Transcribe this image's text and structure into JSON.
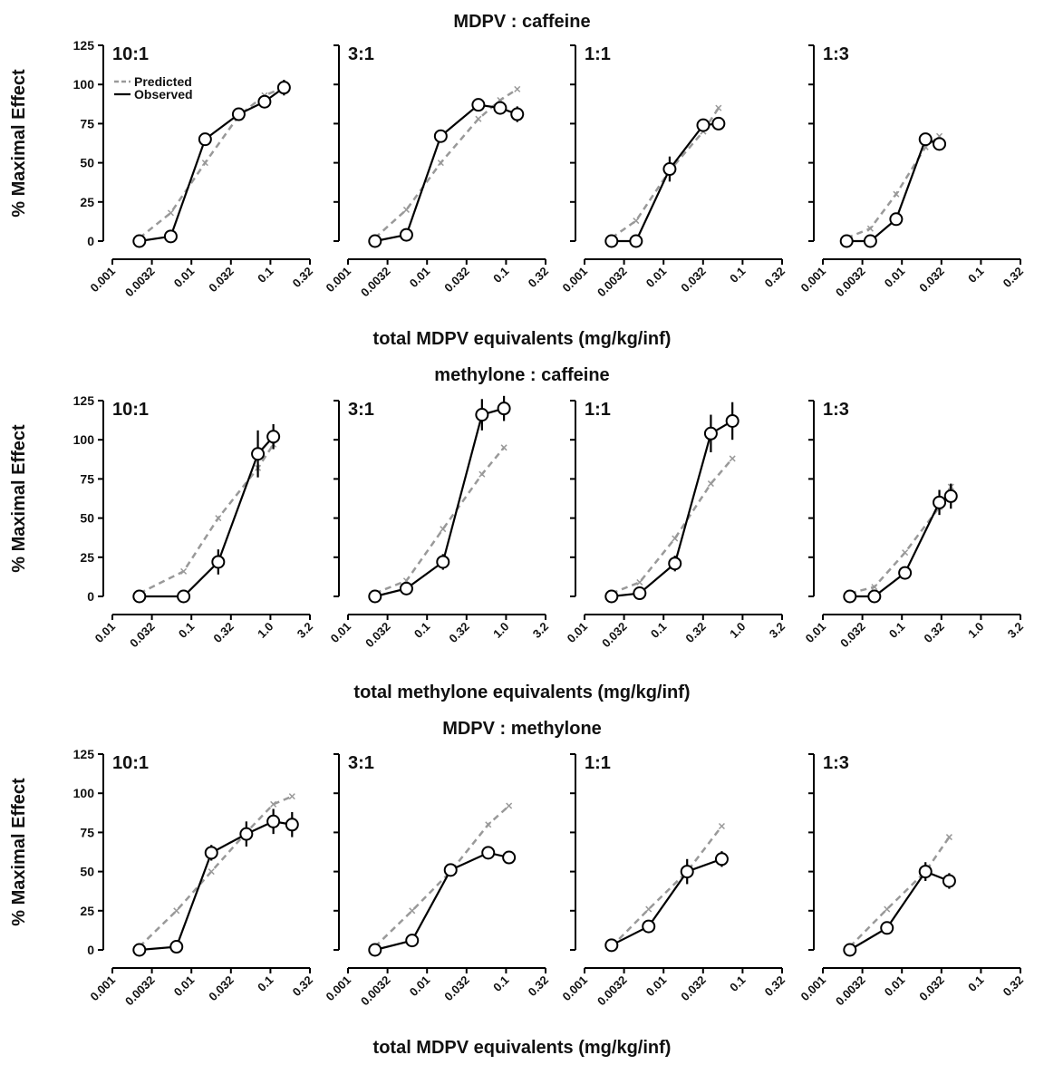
{
  "chart_data": [
    {
      "type": "line",
      "title": "MDPV : caffeine",
      "xlabel": "total MDPV equivalents (mg/kg/inf)",
      "ylabel": "% Maximal Effect",
      "xscale": "log",
      "xticks": [
        "0.001",
        "0.0032",
        "0.01",
        "0.032",
        "0.1",
        "0.32"
      ],
      "xlim": [
        0.001,
        0.32
      ],
      "yticks": [
        "0",
        "25",
        "50",
        "75",
        "100",
        "125"
      ],
      "ylim": [
        0,
        125
      ],
      "legend": {
        "placement": "top-left",
        "entries": [
          "Predicted",
          "Observed"
        ]
      },
      "panels": [
        {
          "ratio": "10:1",
          "predicted": {
            "x": [
              0.0022,
              0.0055,
              0.015,
              0.04,
              0.085,
              0.15
            ],
            "y": [
              2,
              18,
              50,
              80,
              93,
              98
            ]
          },
          "observed": {
            "x": [
              0.0022,
              0.0055,
              0.015,
              0.04,
              0.085,
              0.15
            ],
            "y": [
              0,
              3,
              65,
              81,
              89,
              98
            ],
            "err": [
              0,
              2,
              2,
              2,
              3,
              5
            ]
          }
        },
        {
          "ratio": "3:1",
          "predicted": {
            "x": [
              0.0022,
              0.0055,
              0.015,
              0.045,
              0.085,
              0.14
            ],
            "y": [
              2,
              20,
              50,
              78,
              90,
              97
            ]
          },
          "observed": {
            "x": [
              0.0022,
              0.0055,
              0.015,
              0.045,
              0.085,
              0.14
            ],
            "y": [
              0,
              4,
              67,
              87,
              85,
              81
            ],
            "err": [
              0,
              2,
              2,
              2,
              3,
              5
            ]
          }
        },
        {
          "ratio": "1:1",
          "predicted": {
            "x": [
              0.0022,
              0.0045,
              0.012,
              0.032,
              0.05
            ],
            "y": [
              2,
              13,
              45,
              70,
              85
            ]
          },
          "observed": {
            "x": [
              0.0022,
              0.0045,
              0.012,
              0.032,
              0.05
            ],
            "y": [
              0,
              0,
              46,
              74,
              75
            ],
            "err": [
              0,
              0,
              8,
              3,
              4
            ]
          }
        },
        {
          "ratio": "1:3",
          "predicted": {
            "x": [
              0.002,
              0.004,
              0.0085,
              0.02,
              0.03
            ],
            "y": [
              2,
              8,
              30,
              60,
              67
            ]
          },
          "observed": {
            "x": [
              0.002,
              0.004,
              0.0085,
              0.02,
              0.03
            ],
            "y": [
              0,
              0,
              14,
              65,
              62
            ],
            "err": [
              0,
              0,
              2,
              2,
              3
            ]
          }
        }
      ]
    },
    {
      "type": "line",
      "title": "methylone : caffeine",
      "xlabel": "total methylone equivalents (mg/kg/inf)",
      "ylabel": "% Maximal Effect",
      "xscale": "log",
      "xticks": [
        "0.01",
        "0.032",
        "0.1",
        "0.32",
        "1.0",
        "3.2"
      ],
      "xlim": [
        0.01,
        3.2
      ],
      "yticks": [
        "0",
        "25",
        "50",
        "75",
        "100",
        "125"
      ],
      "ylim": [
        0,
        125
      ],
      "panels": [
        {
          "ratio": "10:1",
          "predicted": {
            "x": [
              0.022,
              0.08,
              0.22,
              0.7,
              1.1
            ],
            "y": [
              2,
              16,
              50,
              82,
              97
            ]
          },
          "observed": {
            "x": [
              0.022,
              0.08,
              0.22,
              0.7,
              1.1
            ],
            "y": [
              0,
              0,
              22,
              91,
              102
            ],
            "err": [
              0,
              0,
              8,
              15,
              8
            ]
          }
        },
        {
          "ratio": "3:1",
          "predicted": {
            "x": [
              0.022,
              0.055,
              0.16,
              0.5,
              0.95
            ],
            "y": [
              2,
              10,
              43,
              78,
              95
            ]
          },
          "observed": {
            "x": [
              0.022,
              0.055,
              0.16,
              0.5,
              0.95
            ],
            "y": [
              0,
              5,
              22,
              116,
              120
            ],
            "err": [
              0,
              2,
              5,
              10,
              8
            ]
          }
        },
        {
          "ratio": "1:1",
          "predicted": {
            "x": [
              0.022,
              0.05,
              0.14,
              0.4,
              0.75
            ],
            "y": [
              2,
              9,
              37,
              72,
              88
            ]
          },
          "observed": {
            "x": [
              0.022,
              0.05,
              0.14,
              0.4,
              0.75
            ],
            "y": [
              0,
              2,
              21,
              104,
              112
            ],
            "err": [
              0,
              2,
              5,
              12,
              12
            ]
          }
        },
        {
          "ratio": "1:3",
          "predicted": {
            "x": [
              0.022,
              0.045,
              0.11,
              0.3,
              0.42
            ],
            "y": [
              2,
              6,
              28,
              57,
              70
            ]
          },
          "observed": {
            "x": [
              0.022,
              0.045,
              0.11,
              0.3,
              0.42
            ],
            "y": [
              0,
              0,
              15,
              60,
              64
            ],
            "err": [
              0,
              0,
              3,
              8,
              8
            ]
          }
        }
      ]
    },
    {
      "type": "line",
      "title": "MDPV : methylone",
      "xlabel": "total MDPV equivalents (mg/kg/inf)",
      "ylabel": "% Maximal Effect",
      "xscale": "log",
      "xticks": [
        "0.001",
        "0.0032",
        "0.01",
        "0.032",
        "0.1",
        "0.32"
      ],
      "xlim": [
        0.001,
        0.32
      ],
      "yticks": [
        "0",
        "25",
        "50",
        "75",
        "100",
        "125"
      ],
      "ylim": [
        0,
        125
      ],
      "panels": [
        {
          "ratio": "10:1",
          "predicted": {
            "x": [
              0.0022,
              0.0065,
              0.018,
              0.05,
              0.11,
              0.19
            ],
            "y": [
              2,
              25,
              50,
              75,
              93,
              98
            ]
          },
          "observed": {
            "x": [
              0.0022,
              0.0065,
              0.018,
              0.05,
              0.11,
              0.19
            ],
            "y": [
              0,
              2,
              62,
              74,
              82,
              80
            ],
            "err": [
              0,
              2,
              5,
              8,
              8,
              8
            ]
          }
        },
        {
          "ratio": "3:1",
          "predicted": {
            "x": [
              0.0022,
              0.0065,
              0.02,
              0.06,
              0.11
            ],
            "y": [
              2,
              25,
              50,
              80,
              92
            ]
          },
          "observed": {
            "x": [
              0.0022,
              0.0065,
              0.02,
              0.06,
              0.11
            ],
            "y": [
              0,
              6,
              51,
              62,
              59
            ],
            "err": [
              0,
              2,
              3,
              3,
              3
            ]
          }
        },
        {
          "ratio": "1:1",
          "predicted": {
            "x": [
              0.0022,
              0.0065,
              0.02,
              0.055
            ],
            "y": [
              2,
              26,
              50,
              79
            ]
          },
          "observed": {
            "x": [
              0.0022,
              0.0065,
              0.02,
              0.055
            ],
            "y": [
              3,
              15,
              50,
              58
            ],
            "err": [
              0,
              2,
              8,
              5
            ]
          }
        },
        {
          "ratio": "1:3",
          "predicted": {
            "x": [
              0.0022,
              0.0065,
              0.02,
              0.04
            ],
            "y": [
              2,
              26,
              50,
              72
            ]
          },
          "observed": {
            "x": [
              0.0022,
              0.0065,
              0.02,
              0.04
            ],
            "y": [
              0,
              14,
              50,
              44
            ],
            "err": [
              0,
              3,
              6,
              5
            ]
          }
        }
      ]
    }
  ],
  "colors": {
    "observed": "#000000",
    "predicted": "#999999",
    "marker_fill": "#ffffff"
  }
}
